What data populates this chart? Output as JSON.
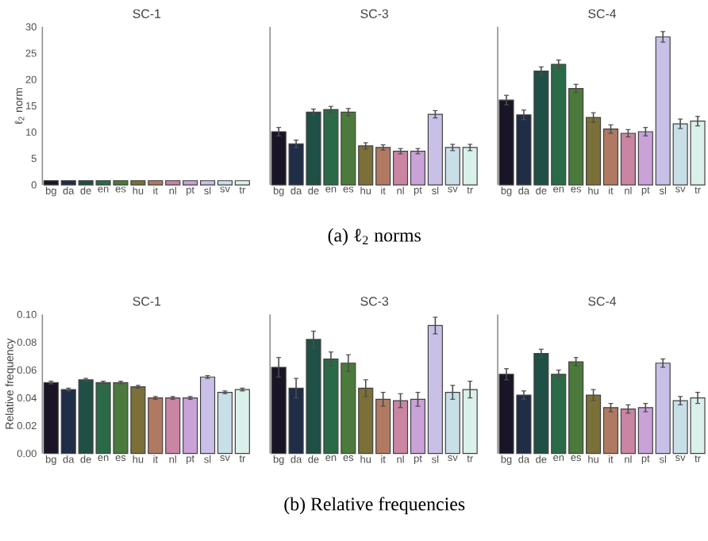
{
  "chart_data": [
    {
      "type": "bar",
      "title": "SC-1",
      "ylabel": "ℓ$_{2}$ norm",
      "categories": [
        "bg",
        "da",
        "de",
        "en",
        "es",
        "hu",
        "it",
        "nl",
        "pt",
        "sl",
        "sv",
        "tr"
      ],
      "values": [
        0.8,
        0.8,
        0.8,
        0.8,
        0.8,
        0.8,
        0.8,
        0.8,
        0.8,
        0.8,
        0.8,
        0.8
      ],
      "colors": [
        "#1a1526",
        "#1f2d47",
        "#1f5045",
        "#2b6a46",
        "#4c7a3c",
        "#7a7038",
        "#b07a62",
        "#c985a2",
        "#c9a2d8",
        "#c9c0e8",
        "#c9dfe8",
        "#daf0ea"
      ],
      "ylim": [
        0,
        30
      ],
      "yticks": [
        0,
        5,
        10,
        15,
        20,
        25,
        30
      ]
    },
    {
      "type": "bar",
      "title": "SC-3",
      "categories": [
        "bg",
        "da",
        "de",
        "en",
        "es",
        "hu",
        "it",
        "nl",
        "pt",
        "sl",
        "sv",
        "tr"
      ],
      "values": [
        10.1,
        7.8,
        13.8,
        14.3,
        13.8,
        7.4,
        7.1,
        6.4,
        6.4,
        13.4,
        7.1,
        7.1
      ],
      "errors": [
        0.8,
        0.7,
        0.6,
        0.6,
        0.7,
        0.6,
        0.5,
        0.5,
        0.5,
        0.7,
        0.6,
        0.6
      ],
      "colors": [
        "#1a1526",
        "#1f2d47",
        "#1f5045",
        "#2b6a46",
        "#4c7a3c",
        "#7a7038",
        "#b07a62",
        "#c985a2",
        "#c9a2d8",
        "#c9c0e8",
        "#c9dfe8",
        "#daf0ea"
      ],
      "ylim": [
        0,
        30
      ],
      "tick_labels": "x",
      "annotations": [
        "(a) ℓ$_{2}$ norms"
      ]
    },
    {
      "type": "bar",
      "title": "SC-4",
      "categories": [
        "bg",
        "da",
        "de",
        "en",
        "es",
        "hu",
        "it",
        "nl",
        "pt",
        "sl",
        "sv",
        "tr"
      ],
      "values": [
        16.1,
        13.3,
        21.6,
        22.9,
        18.3,
        12.8,
        10.6,
        9.8,
        10.1,
        28.1,
        11.6,
        12.1
      ],
      "errors": [
        0.9,
        0.9,
        0.8,
        0.8,
        0.8,
        0.9,
        0.8,
        0.7,
        0.8,
        1.0,
        0.9,
        0.9
      ],
      "colors": [
        "#1a1526",
        "#1f2d47",
        "#1f5045",
        "#2b6a46",
        "#4c7a3c",
        "#7a7038",
        "#b07a62",
        "#c985a2",
        "#c9a2d8",
        "#c9c0e8",
        "#c9dfe8",
        "#daf0ea"
      ],
      "ylim": [
        0,
        30
      ],
      "tick_labels": "x"
    },
    {
      "type": "bar",
      "title": "SC-1",
      "ylabel": "Relative frequency",
      "categories": [
        "bg",
        "da",
        "de",
        "en",
        "es",
        "hu",
        "it",
        "nl",
        "pt",
        "sl",
        "sv",
        "tr"
      ],
      "values": [
        0.051,
        0.046,
        0.053,
        0.051,
        0.051,
        0.048,
        0.04,
        0.04,
        0.04,
        0.055,
        0.044,
        0.046
      ],
      "errors": [
        0.001,
        0.001,
        0.001,
        0.001,
        0.001,
        0.001,
        0.001,
        0.001,
        0.001,
        0.001,
        0.001,
        0.001
      ],
      "colors": [
        "#1a1526",
        "#1f2d47",
        "#1f5045",
        "#2b6a46",
        "#4c7a3c",
        "#7a7038",
        "#b07a62",
        "#c985a2",
        "#c9a2d8",
        "#c9c0e8",
        "#c9dfe8",
        "#daf0ea"
      ],
      "ylim": [
        0,
        0.1
      ],
      "yticks": [
        {
          "value": 0,
          "label": "0.00"
        },
        {
          "value": 0.02,
          "label": "0.02"
        },
        {
          "value": 0.04,
          "label": "0.04"
        },
        {
          "value": 0.06,
          "label": "0.06"
        },
        {
          "value": 0.08,
          "label": "0.08"
        },
        {
          "value": 0.1,
          "label": "0.10"
        }
      ]
    },
    {
      "type": "bar",
      "title": "SC-3",
      "categories": [
        "bg",
        "da",
        "de",
        "en",
        "es",
        "hu",
        "it",
        "nl",
        "pt",
        "sl",
        "sv",
        "tr"
      ],
      "values": [
        0.062,
        0.047,
        0.082,
        0.068,
        0.065,
        0.047,
        0.039,
        0.038,
        0.039,
        0.092,
        0.044,
        0.046
      ],
      "errors": [
        0.007,
        0.007,
        0.006,
        0.005,
        0.006,
        0.006,
        0.005,
        0.005,
        0.005,
        0.006,
        0.005,
        0.006
      ],
      "colors": [
        "#1a1526",
        "#1f2d47",
        "#1f5045",
        "#2b6a46",
        "#4c7a3c",
        "#7a7038",
        "#b07a62",
        "#c985a2",
        "#c9a2d8",
        "#c9c0e8",
        "#c9dfe8",
        "#daf0ea"
      ],
      "ylim": [
        0,
        0.1
      ],
      "tick_labels": "x",
      "annotations": [
        "(b) Relative frequencies"
      ]
    },
    {
      "type": "bar",
      "title": "SC-4",
      "categories": [
        "bg",
        "da",
        "de",
        "en",
        "es",
        "hu",
        "it",
        "nl",
        "pt",
        "sl",
        "sv",
        "tr"
      ],
      "values": [
        0.057,
        0.042,
        0.072,
        0.057,
        0.066,
        0.042,
        0.033,
        0.032,
        0.033,
        0.065,
        0.038,
        0.04
      ],
      "errors": [
        0.004,
        0.003,
        0.003,
        0.003,
        0.003,
        0.004,
        0.003,
        0.003,
        0.003,
        0.003,
        0.003,
        0.004
      ],
      "colors": [
        "#1a1526",
        "#1f2d47",
        "#1f5045",
        "#2b6a46",
        "#4c7a3c",
        "#7a7038",
        "#b07a62",
        "#c985a2",
        "#c9a2d8",
        "#c9c0e8",
        "#c9dfe8",
        "#daf0ea"
      ],
      "ylim": [
        0,
        0.1
      ],
      "tick_labels": "x"
    }
  ]
}
